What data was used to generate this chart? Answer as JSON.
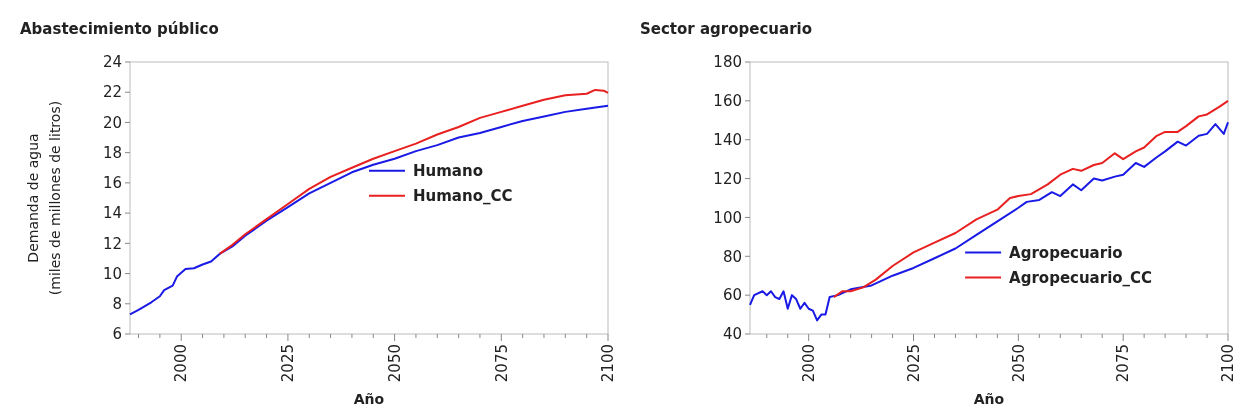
{
  "chart_data": [
    {
      "type": "line",
      "title": "Abastecimiento público",
      "xlabel": "Año",
      "ylabel": "Demanda de agua\n(miles de millones de litros)",
      "xlim": [
        1988,
        2100
      ],
      "ylim": [
        6,
        24
      ],
      "yticks": [
        6,
        8,
        10,
        12,
        14,
        16,
        18,
        20,
        22,
        24
      ],
      "xticks": [
        {
          "value": 1990,
          "label": null
        },
        {
          "value": 1995,
          "label": null
        },
        2000,
        {
          "value": 2005,
          "label": null
        },
        {
          "value": 2010,
          "label": null
        },
        {
          "value": 2015,
          "label": null
        },
        {
          "value": 2020,
          "label": null
        },
        2025,
        {
          "value": 2030,
          "label": null
        },
        {
          "value": 2035,
          "label": null
        },
        {
          "value": 2040,
          "label": null
        },
        {
          "value": 2045,
          "label": null
        },
        2050,
        {
          "value": 2055,
          "label": null
        },
        {
          "value": 2060,
          "label": null
        },
        {
          "value": 2065,
          "label": null
        },
        {
          "value": 2070,
          "label": null
        },
        2075,
        {
          "value": 2080,
          "label": null
        },
        {
          "value": 2085,
          "label": null
        },
        {
          "value": 2090,
          "label": null
        },
        {
          "value": 2095,
          "label": null
        },
        2100
      ],
      "grid": false,
      "legend": "right",
      "series": [
        {
          "name": "Humano",
          "color": "#1a1ae6",
          "x": [
            1988,
            1990,
            1993,
            1995,
            1996,
            1998,
            1999,
            2001,
            2003,
            2005,
            2007,
            2009,
            2012,
            2015,
            2020,
            2025,
            2030,
            2035,
            2040,
            2045,
            2050,
            2055,
            2060,
            2065,
            2070,
            2075,
            2080,
            2085,
            2090,
            2095,
            2100
          ],
          "values": [
            7.3,
            7.6,
            8.1,
            8.5,
            8.9,
            9.2,
            9.8,
            10.3,
            10.35,
            10.6,
            10.8,
            11.3,
            11.8,
            12.5,
            13.5,
            14.4,
            15.3,
            16.0,
            16.7,
            17.2,
            17.6,
            18.1,
            18.5,
            19.0,
            19.3,
            19.7,
            20.1,
            20.4,
            20.7,
            20.9,
            21.1
          ]
        },
        {
          "name": "Humano_CC",
          "color": "#e82020",
          "x": [
            2009,
            2012,
            2015,
            2020,
            2025,
            2030,
            2035,
            2040,
            2045,
            2050,
            2055,
            2060,
            2065,
            2070,
            2075,
            2080,
            2085,
            2090,
            2095,
            2097,
            2099,
            2100
          ],
          "values": [
            11.3,
            11.9,
            12.6,
            13.6,
            14.6,
            15.6,
            16.4,
            17.0,
            17.6,
            18.1,
            18.6,
            19.2,
            19.7,
            20.3,
            20.7,
            21.1,
            21.5,
            21.8,
            21.9,
            22.15,
            22.1,
            21.95
          ]
        }
      ]
    },
    {
      "type": "line",
      "title": "Sector agropecuario",
      "xlabel": "Año",
      "xlim": [
        1986,
        2100
      ],
      "ylim": [
        40,
        180
      ],
      "yticks": [
        40,
        60,
        80,
        100,
        120,
        140,
        160,
        180
      ],
      "xticks": [
        {
          "value": 1990,
          "label": null
        },
        {
          "value": 1995,
          "label": null
        },
        2000,
        {
          "value": 2005,
          "label": null
        },
        {
          "value": 2010,
          "label": null
        },
        {
          "value": 2015,
          "label": null
        },
        {
          "value": 2020,
          "label": null
        },
        2025,
        {
          "value": 2030,
          "label": null
        },
        {
          "value": 2035,
          "label": null
        },
        {
          "value": 2040,
          "label": null
        },
        {
          "value": 2045,
          "label": null
        },
        2050,
        {
          "value": 2055,
          "label": null
        },
        {
          "value": 2060,
          "label": null
        },
        {
          "value": 2065,
          "label": null
        },
        {
          "value": 2070,
          "label": null
        },
        2075,
        {
          "value": 2080,
          "label": null
        },
        {
          "value": 2085,
          "label": null
        },
        {
          "value": 2090,
          "label": null
        },
        {
          "value": 2095,
          "label": null
        },
        2100
      ],
      "grid": false,
      "legend": "bottom right",
      "series": [
        {
          "name": "Agropecuario",
          "color": "#1a1ae6",
          "x": [
            1986,
            1987,
            1989,
            1990,
            1991,
            1992,
            1993,
            1994,
            1995,
            1996,
            1997,
            1998,
            1999,
            2000,
            2001,
            2002,
            2003,
            2004,
            2005,
            2007,
            2010,
            2015,
            2020,
            2025,
            2030,
            2035,
            2040,
            2045,
            2050,
            2052,
            2055,
            2058,
            2060,
            2063,
            2065,
            2068,
            2070,
            2073,
            2075,
            2078,
            2080,
            2083,
            2085,
            2088,
            2090,
            2093,
            2095,
            2097,
            2099,
            2100
          ],
          "values": [
            55,
            60,
            62,
            60,
            62,
            59,
            58,
            62,
            53,
            60,
            58,
            53,
            56,
            53,
            52,
            47,
            50,
            50,
            59,
            60,
            63,
            65,
            70,
            74,
            79,
            84,
            91,
            98,
            105,
            108,
            109,
            113,
            111,
            117,
            114,
            120,
            119,
            121,
            122,
            128,
            126,
            131,
            134,
            139,
            137,
            142,
            143,
            148,
            143,
            149
          ]
        },
        {
          "name": "Agropecuario_CC",
          "color": "#e82020",
          "x": [
            2006,
            2008,
            2010,
            2013,
            2016,
            2020,
            2025,
            2030,
            2035,
            2040,
            2045,
            2048,
            2050,
            2053,
            2057,
            2060,
            2063,
            2065,
            2068,
            2070,
            2073,
            2075,
            2078,
            2080,
            2083,
            2085,
            2088,
            2090,
            2093,
            2095,
            2098,
            2100
          ],
          "values": [
            59,
            62,
            62,
            64,
            68,
            75,
            82,
            87,
            92,
            99,
            104,
            110,
            111,
            112,
            117,
            122,
            125,
            124,
            127,
            128,
            133,
            130,
            134,
            136,
            142,
            144,
            144,
            147,
            152,
            153,
            157,
            160
          ]
        }
      ]
    }
  ]
}
